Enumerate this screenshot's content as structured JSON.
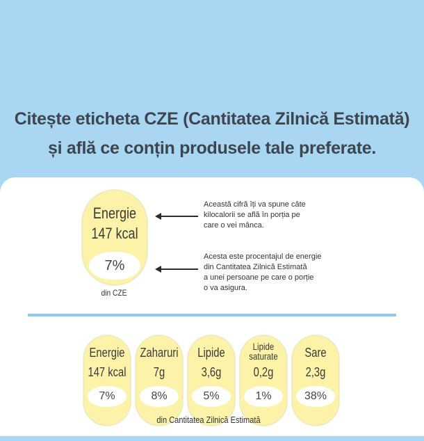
{
  "headline": {
    "line1": "Citește eticheta CZE (Cantitatea Zilnică Estimată)",
    "line2": "și află ce conțin produsele tale preferate."
  },
  "example": {
    "name": "Energie",
    "value": "147 kcal",
    "percent": "7%",
    "caption": "din CZE"
  },
  "notes": [
    "Această cifră îți va spune câte\nkilocalorii se află în porția pe\ncare o vei mânca.",
    "Acesta este procentajul de energie\ndin Cantitatea Zilnică Estimată\na unei persoane pe care o porție\no va asigura."
  ],
  "nutrients": [
    {
      "name": "Energie",
      "value": "147 kcal",
      "percent": "7%"
    },
    {
      "name": "Zaharuri",
      "value": "7g",
      "percent": "8%"
    },
    {
      "name": "Lipide",
      "value": "3,6g",
      "percent": "5%"
    },
    {
      "name": "Lipide saturate",
      "value": "0,2g",
      "percent": "1%"
    },
    {
      "name": "Sare",
      "value": "2,3g",
      "percent": "38%"
    }
  ],
  "footer": "din  Cantitatea Zilnică Estimată",
  "colors": {
    "background": "#a9d7f1",
    "pill": "#fdf3a8",
    "divider": "#8ccbef"
  }
}
